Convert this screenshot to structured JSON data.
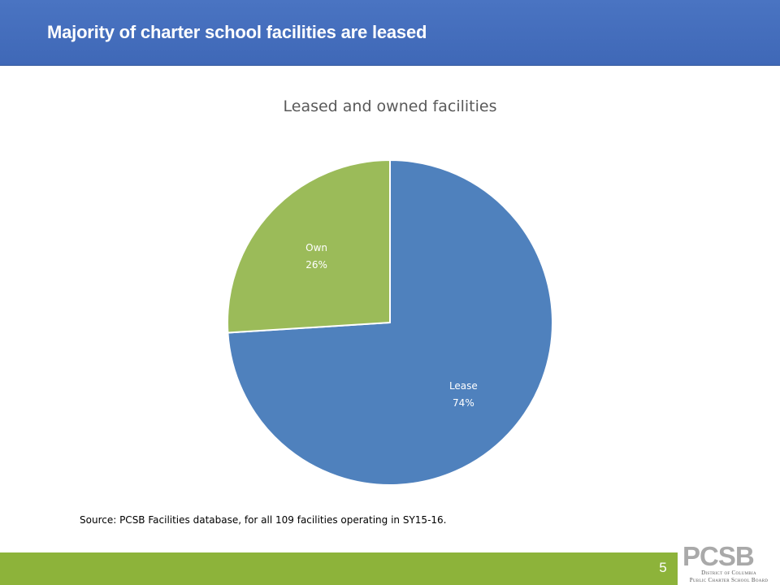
{
  "header": {
    "title": "Majority of charter school facilities are leased"
  },
  "chart_data": {
    "type": "pie",
    "title": "Leased and owned facilities",
    "slices": [
      {
        "label": "Lease",
        "value": 74,
        "display": "74%",
        "color": "#4f81bd"
      },
      {
        "label": "Own",
        "value": 26,
        "display": "26%",
        "color": "#9bbb59"
      }
    ]
  },
  "source_note": "Source: PCSB Facilities database, for all 109 facilities operating in SY15-16.",
  "footer": {
    "page_number": "5",
    "logo_text": "PCSB",
    "logo_subtitle_1": "District of Columbia",
    "logo_subtitle_2": "Public Charter School Board"
  },
  "colors": {
    "header_bar": "#4472c4",
    "footer_bar": "#8db33a",
    "lease": "#4f81bd",
    "own": "#9bbb59"
  }
}
